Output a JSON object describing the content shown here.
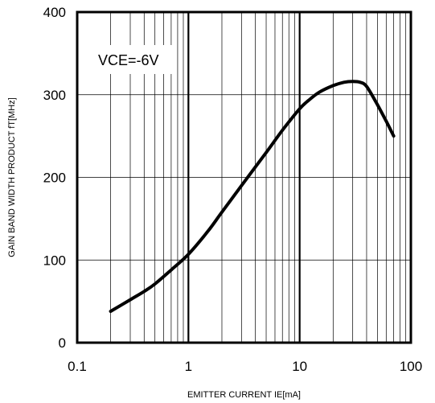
{
  "chart_data": {
    "type": "line",
    "title": "",
    "xlabel": "EMITTER CURRENT IE[mA]",
    "ylabel": "GAIN BAND WIDTH PRODUCT fT[MHz]",
    "xscale": "log",
    "xlim": [
      0.1,
      100
    ],
    "ylim": [
      0,
      400
    ],
    "xticks": [
      0.1,
      1,
      10,
      100
    ],
    "xtick_labels": [
      "0.1",
      "1",
      "10",
      "100"
    ],
    "yticks": [
      0,
      100,
      200,
      300,
      400
    ],
    "ytick_labels": [
      "0",
      "100",
      "200",
      "300",
      "400"
    ],
    "grid": true,
    "legend": "none",
    "annotation": "VCE=-6V",
    "line_color": "#000000",
    "series": [
      {
        "x": [
          0.2,
          0.3,
          0.4,
          0.5,
          0.7,
          1,
          1.5,
          2,
          3,
          5,
          7,
          10,
          12,
          15,
          20,
          25,
          30,
          35,
          40,
          50,
          60,
          70
        ],
        "y": [
          38,
          52,
          62,
          71,
          88,
          107,
          135,
          158,
          190,
          230,
          257,
          283,
          293,
          303,
          311,
          315,
          316,
          315,
          310,
          288,
          268,
          250
        ]
      }
    ]
  }
}
